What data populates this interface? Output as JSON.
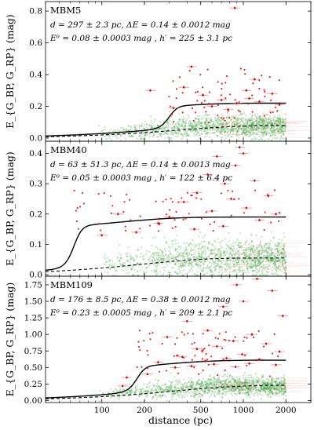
{
  "xlabel": "distance (pc)",
  "ylabel": "E_{G_BP, G_RP} (mag)",
  "xticks": [
    100,
    200,
    500,
    1000,
    2000
  ],
  "chart_data": [
    {
      "type": "scatter",
      "title": "MBM5",
      "line1": "d = 297 ± 2.3 pc,  ΔE = 0.14 ± 0.0012 mag",
      "line2": "E⁰ = 0.08 ± 0.0003 mag ,  h′ = 225 ± 3.1 pc",
      "xscale": "log",
      "xlim": [
        40,
        3000
      ],
      "ylim": [
        -0.02,
        0.86
      ],
      "yticks": [
        0.0,
        0.2,
        0.4,
        0.6,
        0.8
      ],
      "ytick_labels": [
        "0.0",
        "0.2",
        "0.4",
        "0.6",
        "0.8"
      ],
      "model": {
        "E0": 0.08,
        "h": 225,
        "d": 297,
        "dE": 0.14
      },
      "lower_envelope_end": 0.08,
      "cloud": {
        "center": 0.075,
        "spread": 0.035
      },
      "outliers": [
        {
          "x": 870,
          "y": 0.82
        },
        {
          "x": 430,
          "y": 0.45
        },
        {
          "x": 1200,
          "y": 0.37
        },
        {
          "x": 1050,
          "y": 0.3
        },
        {
          "x": 380,
          "y": 0.32
        },
        {
          "x": 220,
          "y": 0.3
        },
        {
          "x": 1600,
          "y": 0.28
        },
        {
          "x": 700,
          "y": 0.24
        },
        {
          "x": 520,
          "y": 0.27
        },
        {
          "x": 1300,
          "y": 0.23
        },
        {
          "x": 900,
          "y": 0.22
        },
        {
          "x": 600,
          "y": 0.2
        },
        {
          "x": 1800,
          "y": 0.21
        },
        {
          "x": 320,
          "y": 0.19
        },
        {
          "x": 1100,
          "y": 0.25
        },
        {
          "x": 780,
          "y": 0.18
        }
      ]
    },
    {
      "type": "scatter",
      "title": "MBM40",
      "line1": "d = 63 ± 51.3 pc,  ΔE = 0.14 ± 0.0013 mag",
      "line2": "E⁰ = 0.05 ± 0.0003 mag ,  h′ = 122 ± 6.4 pc",
      "xscale": "log",
      "xlim": [
        40,
        3000
      ],
      "ylim": [
        -0.005,
        0.44
      ],
      "yticks": [
        0.0,
        0.1,
        0.2,
        0.3,
        0.4
      ],
      "ytick_labels": [
        "0.0",
        "0.1",
        "0.2",
        "0.3",
        "0.4"
      ],
      "model": {
        "E0": 0.05,
        "h": 122,
        "d": 63,
        "dE": 0.14
      },
      "lower_envelope_end": 0.055,
      "cloud": {
        "center": 0.055,
        "spread": 0.03
      },
      "outliers": [
        {
          "x": 940,
          "y": 0.42
        },
        {
          "x": 1000,
          "y": 0.4
        },
        {
          "x": 650,
          "y": 0.39
        },
        {
          "x": 880,
          "y": 0.36
        },
        {
          "x": 560,
          "y": 0.33
        },
        {
          "x": 1200,
          "y": 0.31
        },
        {
          "x": 740,
          "y": 0.3
        },
        {
          "x": 470,
          "y": 0.27
        },
        {
          "x": 1500,
          "y": 0.26
        },
        {
          "x": 380,
          "y": 0.24
        },
        {
          "x": 820,
          "y": 0.25
        },
        {
          "x": 1050,
          "y": 0.22
        },
        {
          "x": 130,
          "y": 0.2
        },
        {
          "x": 300,
          "y": 0.19
        },
        {
          "x": 600,
          "y": 0.21
        },
        {
          "x": 1700,
          "y": 0.2
        },
        {
          "x": 250,
          "y": 0.17
        },
        {
          "x": 1300,
          "y": 0.18
        },
        {
          "x": 720,
          "y": 0.16
        },
        {
          "x": 450,
          "y": 0.15
        },
        {
          "x": 100,
          "y": 0.13
        },
        {
          "x": 175,
          "y": 0.14
        }
      ]
    },
    {
      "type": "scatter",
      "title": "MBM109",
      "line1": "d = 176 ± 8.5 pc,  ΔE = 0.38 ± 0.0012 mag",
      "line2": "E⁰ = 0.23 ± 0.0005 mag ,  h′ = 209 ± 2.1 pc",
      "xscale": "log",
      "xlim": [
        40,
        3000
      ],
      "ylim": [
        -0.03,
        1.88
      ],
      "yticks": [
        0.0,
        0.25,
        0.5,
        0.75,
        1.0,
        1.25,
        1.5,
        1.75
      ],
      "ytick_labels": [
        "0.00",
        "0.25",
        "0.50",
        "0.75",
        "1.00",
        "1.25",
        "1.50",
        "1.75"
      ],
      "model": {
        "E0": 0.23,
        "h": 209,
        "d": 176,
        "dE": 0.38
      },
      "lower_envelope_end": 0.23,
      "cloud": {
        "center": 0.22,
        "spread": 0.07
      },
      "outliers": [
        {
          "x": 1250,
          "y": 1.84
        },
        {
          "x": 900,
          "y": 1.75
        },
        {
          "x": 1600,
          "y": 1.66
        },
        {
          "x": 1000,
          "y": 1.5
        },
        {
          "x": 720,
          "y": 1.42
        },
        {
          "x": 400,
          "y": 1.2
        },
        {
          "x": 1900,
          "y": 1.28
        },
        {
          "x": 560,
          "y": 1.06
        },
        {
          "x": 1150,
          "y": 1.0
        },
        {
          "x": 290,
          "y": 0.96
        },
        {
          "x": 850,
          "y": 0.9
        },
        {
          "x": 650,
          "y": 0.82
        },
        {
          "x": 1450,
          "y": 0.86
        },
        {
          "x": 470,
          "y": 0.78
        },
        {
          "x": 1800,
          "y": 0.74
        },
        {
          "x": 980,
          "y": 0.7
        },
        {
          "x": 370,
          "y": 0.66
        },
        {
          "x": 760,
          "y": 0.64
        },
        {
          "x": 1300,
          "y": 0.62
        },
        {
          "x": 540,
          "y": 0.6
        },
        {
          "x": 250,
          "y": 0.58
        },
        {
          "x": 1100,
          "y": 0.56
        },
        {
          "x": 620,
          "y": 0.55
        },
        {
          "x": 1700,
          "y": 0.54
        },
        {
          "x": 430,
          "y": 0.52
        },
        {
          "x": 880,
          "y": 0.51
        },
        {
          "x": 330,
          "y": 0.5
        },
        {
          "x": 150,
          "y": 0.35
        },
        {
          "x": 140,
          "y": 0.22
        },
        {
          "x": 210,
          "y": 0.4
        }
      ]
    }
  ]
}
